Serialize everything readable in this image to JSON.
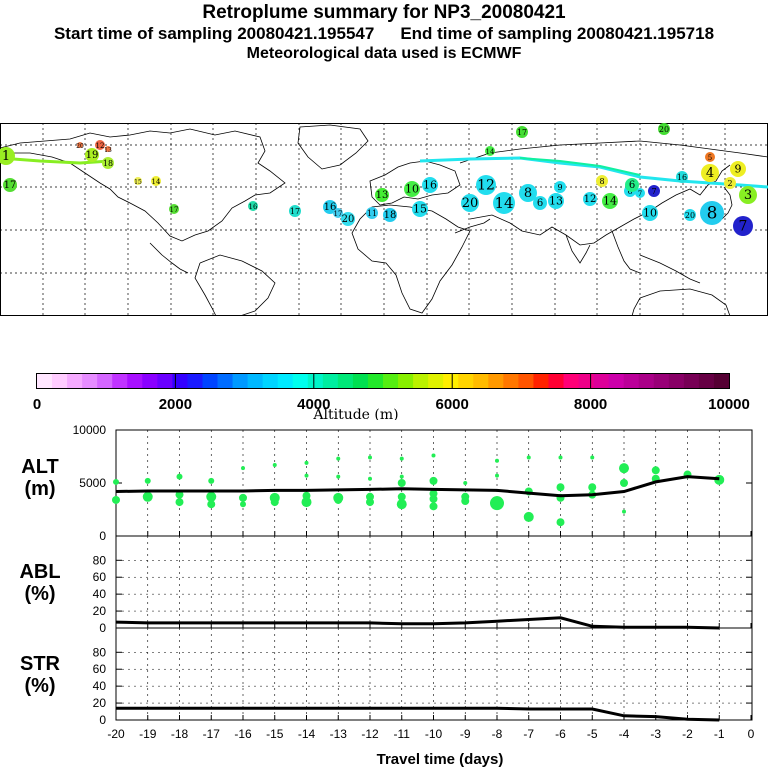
{
  "header": {
    "title": "Retroplume summary for NP3_20080421",
    "start_label": "Start time of sampling 20080421.195547",
    "end_label": "End time of sampling 20080421.195718",
    "met_label": "Meteorological data used is ECMWF"
  },
  "colors": {
    "track_alt": "#11f0a0",
    "track_cyan": "#22e6ee",
    "land_line": "#000000",
    "marker_green": "#22ee55"
  },
  "map": {
    "plume_labels": [
      {
        "t": "1",
        "c": "#99ee22"
      },
      {
        "t": "17",
        "c": "#55dd33"
      },
      {
        "t": "19",
        "c": "#aaee22"
      },
      {
        "t": "18",
        "c": "#aaee33"
      },
      {
        "t": "20",
        "c": "#ee7744"
      },
      {
        "t": "12",
        "c": "#ee6644"
      },
      {
        "t": "13",
        "c": "#ee7744"
      },
      {
        "t": "14",
        "c": "#eeee33"
      },
      {
        "t": "15",
        "c": "#eeee55"
      },
      {
        "t": "17",
        "c": "#55dd33"
      },
      {
        "t": "16",
        "c": "#22ddaa"
      },
      {
        "t": "17",
        "c": "#22ddcc"
      },
      {
        "t": "16",
        "c": "#22ccee"
      },
      {
        "t": "17",
        "c": "#44ccee"
      },
      {
        "t": "20",
        "c": "#33ddee"
      },
      {
        "t": "11",
        "c": "#33ccee"
      },
      {
        "t": "18",
        "c": "#22ccee"
      },
      {
        "t": "10",
        "c": "#44ee44"
      },
      {
        "t": "13",
        "c": "#44ee33"
      },
      {
        "t": "15",
        "c": "#22ddee"
      },
      {
        "t": "16",
        "c": "#22ddee"
      },
      {
        "t": "20",
        "c": "#22ddee"
      },
      {
        "t": "12",
        "c": "#22ddee"
      },
      {
        "t": "14",
        "c": "#22ddee"
      },
      {
        "t": "8",
        "c": "#22ddee"
      },
      {
        "t": "6",
        "c": "#22ddee"
      },
      {
        "t": "13",
        "c": "#22ddee"
      },
      {
        "t": "12",
        "c": "#22ddee"
      },
      {
        "t": "9",
        "c": "#22ddee"
      },
      {
        "t": "7",
        "c": "#22ddee"
      },
      {
        "t": "6",
        "c": "#22ddee"
      },
      {
        "t": "8",
        "c": "#eeee33"
      },
      {
        "t": "6",
        "c": "#22ee88"
      },
      {
        "t": "14",
        "c": "#44ee44"
      },
      {
        "t": "10",
        "c": "#22ddee"
      },
      {
        "t": "7",
        "c": "#2222cc"
      },
      {
        "t": "16",
        "c": "#22dddd"
      },
      {
        "t": "4",
        "c": "#eeee22"
      },
      {
        "t": "9",
        "c": "#eeee22"
      },
      {
        "t": "3",
        "c": "#88ee22"
      },
      {
        "t": "2",
        "c": "#eeee33"
      },
      {
        "t": "20",
        "c": "#22ddee"
      },
      {
        "t": "8",
        "c": "#22ccee"
      },
      {
        "t": "7",
        "c": "#2222cc"
      },
      {
        "t": "17",
        "c": "#44dd33"
      },
      {
        "t": "20",
        "c": "#44dd33"
      },
      {
        "t": "14",
        "c": "#44ee44"
      },
      {
        "t": "5",
        "c": "#ee7722"
      }
    ]
  },
  "colorbar": {
    "ticks": [
      "0",
      "2000",
      "4000",
      "6000",
      "8000",
      "10000"
    ],
    "label": "Altitude (m)",
    "colors": [
      "#ffe6ff",
      "#ffccff",
      "#f5aaff",
      "#e68cff",
      "#d466ff",
      "#c033ff",
      "#a810ff",
      "#8a00ff",
      "#6a00ff",
      "#3300ff",
      "#1a1aff",
      "#0044ff",
      "#006cff",
      "#0099ff",
      "#00b8ff",
      "#00d4ff",
      "#00eaff",
      "#00ffee",
      "#00f5c8",
      "#00eea0",
      "#00e878",
      "#00e050",
      "#22e82a",
      "#55ee11",
      "#88f000",
      "#bbf200",
      "#e0f200",
      "#ffee00",
      "#ffd400",
      "#ffbb00",
      "#ff9900",
      "#ff7700",
      "#ff5500",
      "#ff2200",
      "#ff0033",
      "#ff0077",
      "#ee0088",
      "#dd0099",
      "#cc00aa",
      "#bb0099",
      "#aa0088",
      "#990077",
      "#880066",
      "#770055",
      "#660044",
      "#550033"
    ]
  },
  "chart_data": [
    {
      "type": "line",
      "title": "",
      "ylabel": "ALT\n(m)",
      "ylabel_lines": [
        "ALT",
        "(m)"
      ],
      "ylim": [
        0,
        10000
      ],
      "yticks": [
        "10000",
        "5000",
        "0"
      ],
      "x": [
        -20,
        -19,
        -18,
        -17,
        -16,
        -15,
        -14,
        -13,
        -12,
        -11,
        -10,
        -9,
        -8,
        -7,
        -6,
        -5,
        -4,
        -3,
        -2,
        -1
      ],
      "series": [
        {
          "name": "Altitude",
          "values": [
            4200,
            4250,
            4250,
            4250,
            4250,
            4300,
            4300,
            4350,
            4400,
            4450,
            4400,
            4350,
            4300,
            4050,
            3800,
            3900,
            4200,
            5100,
            5600,
            5400
          ]
        }
      ],
      "markers": [
        {
          "x": -20,
          "y": 5100,
          "r": 3
        },
        {
          "x": -20,
          "y": 3400,
          "r": 4
        },
        {
          "x": -19,
          "y": 5200,
          "r": 3
        },
        {
          "x": -19,
          "y": 3700,
          "r": 5
        },
        {
          "x": -18,
          "y": 5600,
          "r": 3
        },
        {
          "x": -18,
          "y": 3900,
          "r": 4
        },
        {
          "x": -18,
          "y": 3200,
          "r": 4
        },
        {
          "x": -17,
          "y": 5200,
          "r": 3
        },
        {
          "x": -17,
          "y": 3700,
          "r": 5
        },
        {
          "x": -17,
          "y": 3000,
          "r": 4
        },
        {
          "x": -16,
          "y": 6400,
          "r": 2
        },
        {
          "x": -16,
          "y": 3600,
          "r": 4
        },
        {
          "x": -16,
          "y": 3000,
          "r": 3
        },
        {
          "x": -15,
          "y": 6700,
          "r": 2
        },
        {
          "x": -15,
          "y": 3600,
          "r": 5
        },
        {
          "x": -15,
          "y": 3200,
          "r": 4
        },
        {
          "x": -14,
          "y": 6900,
          "r": 2
        },
        {
          "x": -14,
          "y": 5700,
          "r": 2
        },
        {
          "x": -14,
          "y": 3800,
          "r": 4
        },
        {
          "x": -14,
          "y": 3200,
          "r": 5
        },
        {
          "x": -13,
          "y": 7300,
          "r": 2
        },
        {
          "x": -13,
          "y": 5600,
          "r": 2
        },
        {
          "x": -13,
          "y": 3600,
          "r": 5
        },
        {
          "x": -13,
          "y": 3400,
          "r": 4
        },
        {
          "x": -12,
          "y": 7400,
          "r": 2
        },
        {
          "x": -12,
          "y": 5400,
          "r": 2
        },
        {
          "x": -12,
          "y": 3700,
          "r": 4
        },
        {
          "x": -12,
          "y": 3200,
          "r": 4
        },
        {
          "x": -11,
          "y": 7300,
          "r": 2
        },
        {
          "x": -11,
          "y": 5600,
          "r": 2
        },
        {
          "x": -11,
          "y": 5000,
          "r": 4
        },
        {
          "x": -11,
          "y": 3700,
          "r": 4
        },
        {
          "x": -11,
          "y": 3000,
          "r": 5
        },
        {
          "x": -10,
          "y": 7600,
          "r": 2
        },
        {
          "x": -10,
          "y": 5200,
          "r": 4
        },
        {
          "x": -10,
          "y": 4000,
          "r": 4
        },
        {
          "x": -10,
          "y": 3500,
          "r": 4
        },
        {
          "x": -10,
          "y": 2800,
          "r": 4
        },
        {
          "x": -9,
          "y": 5000,
          "r": 2
        },
        {
          "x": -9,
          "y": 3700,
          "r": 4
        },
        {
          "x": -9,
          "y": 3300,
          "r": 4
        },
        {
          "x": -8,
          "y": 7100,
          "r": 2
        },
        {
          "x": -8,
          "y": 5700,
          "r": 2
        },
        {
          "x": -8,
          "y": 3100,
          "r": 7
        },
        {
          "x": -7,
          "y": 7400,
          "r": 2
        },
        {
          "x": -7,
          "y": 4200,
          "r": 4
        },
        {
          "x": -7,
          "y": 1800,
          "r": 5
        },
        {
          "x": -6,
          "y": 7400,
          "r": 2
        },
        {
          "x": -6,
          "y": 4600,
          "r": 4
        },
        {
          "x": -6,
          "y": 3600,
          "r": 4
        },
        {
          "x": -6,
          "y": 1300,
          "r": 4
        },
        {
          "x": -5,
          "y": 7400,
          "r": 2
        },
        {
          "x": -5,
          "y": 4600,
          "r": 4
        },
        {
          "x": -5,
          "y": 3900,
          "r": 4
        },
        {
          "x": -4,
          "y": 6400,
          "r": 5
        },
        {
          "x": -4,
          "y": 5000,
          "r": 4
        },
        {
          "x": -4,
          "y": 2300,
          "r": 2
        },
        {
          "x": -3,
          "y": 6200,
          "r": 4
        },
        {
          "x": -3,
          "y": 5400,
          "r": 4
        },
        {
          "x": -2,
          "y": 5800,
          "r": 4
        },
        {
          "x": -1,
          "y": 5300,
          "r": 5
        }
      ]
    },
    {
      "type": "line",
      "ylabel": "ABL\n(%)",
      "ylabel_lines": [
        "ABL",
        "(%)"
      ],
      "ylim": [
        0,
        100
      ],
      "yticks": [
        "80",
        "60",
        "40",
        "20",
        "0"
      ],
      "x": [
        -20,
        -19,
        -18,
        -17,
        -16,
        -15,
        -14,
        -13,
        -12,
        -11,
        -10,
        -9,
        -8,
        -7,
        -6,
        -5,
        -4,
        -3,
        -2,
        -1
      ],
      "series": [
        {
          "name": "ABL",
          "values": [
            7,
            6,
            6,
            6,
            6,
            6,
            6,
            6,
            6,
            5,
            5,
            6,
            8,
            10,
            12,
            2,
            1,
            1,
            1,
            0
          ]
        }
      ]
    },
    {
      "type": "line",
      "ylabel": "STR\n(%)",
      "ylabel_lines": [
        "STR",
        "(%)"
      ],
      "ylim": [
        0,
        100
      ],
      "yticks": [
        "80",
        "60",
        "40",
        "20",
        "0"
      ],
      "xlabel": "Travel time (days)",
      "xticks": [
        "-20",
        "-19",
        "-18",
        "-17",
        "-16",
        "-15",
        "-14",
        "-13",
        "-12",
        "-11",
        "-10",
        "-9",
        "-8",
        "-7",
        "-6",
        "-5",
        "-4",
        "-3",
        "-2",
        "-1",
        "0"
      ],
      "x": [
        -20,
        -19,
        -18,
        -17,
        -16,
        -15,
        -14,
        -13,
        -12,
        -11,
        -10,
        -9,
        -8,
        -7,
        -6,
        -5,
        -4,
        -3,
        -2,
        -1
      ],
      "series": [
        {
          "name": "Stratosphere",
          "values": [
            14,
            14,
            14,
            14,
            14,
            14,
            14,
            14,
            14,
            14,
            14,
            14,
            14,
            13,
            13,
            13,
            5,
            4,
            1,
            0
          ]
        }
      ]
    }
  ]
}
